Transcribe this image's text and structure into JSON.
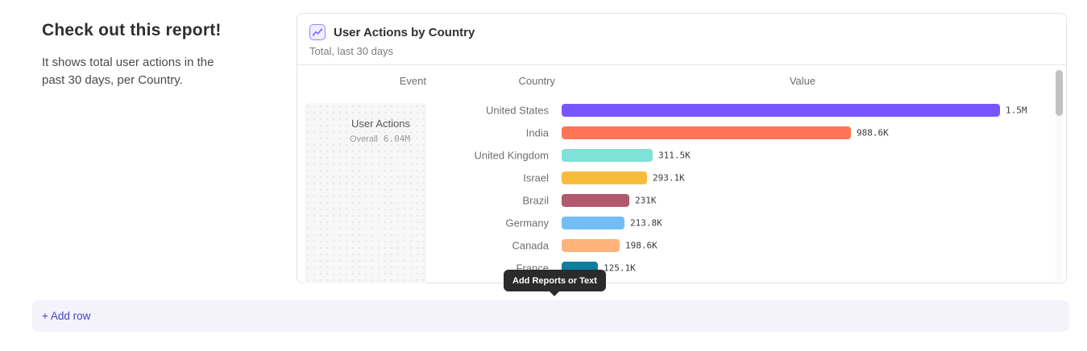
{
  "intro": {
    "heading": "Check out this report!",
    "body": "It shows total user actions in the past 30 days, per Country."
  },
  "card": {
    "title": "User Actions by Country",
    "subtitle": "Total, last 30 days",
    "columns": [
      "Event",
      "Country",
      "Value"
    ],
    "event": {
      "name": "User Actions",
      "overall_label": "Overall",
      "overall_value": "6.04M"
    }
  },
  "chart_data": {
    "type": "bar",
    "orientation": "horizontal",
    "title": "User Actions by Country",
    "subtitle": "Total, last 30 days",
    "event": "User Actions",
    "overall_total": "6.04M",
    "categories": [
      "United States",
      "India",
      "United Kingdom",
      "Israel",
      "Brazil",
      "Germany",
      "Canada",
      "France"
    ],
    "values": [
      1500000,
      988600,
      311500,
      293100,
      231000,
      213800,
      198600,
      125100
    ],
    "value_labels": [
      "1.5M",
      "988.6K",
      "311.5K",
      "293.1K",
      "231K",
      "213.8K",
      "198.6K",
      "125.1K"
    ],
    "colors": [
      "#7856FF",
      "#FF7557",
      "#80E1D9",
      "#F8BC3B",
      "#B2596E",
      "#72BEF4",
      "#FFB27A",
      "#0D7EA0"
    ],
    "xlim": [
      0,
      1500000
    ],
    "legend": null,
    "grid": false
  },
  "tooltip": {
    "label": "Add Reports or Text"
  },
  "add_row": {
    "label": "+ Add row"
  },
  "theme": {
    "accent": "#7856FF",
    "tooltip_bg": "#2B2B2B",
    "add_row_bg": "#F4F2FB",
    "add_row_text": "#4B42C4"
  }
}
